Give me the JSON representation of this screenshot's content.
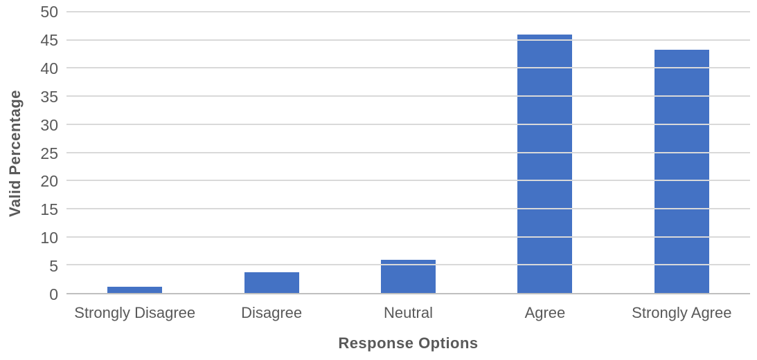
{
  "chart_data": {
    "type": "bar",
    "categories": [
      "Strongly Disagree",
      "Disagree",
      "Neutral",
      "Agree",
      "Strongly Agree"
    ],
    "values": [
      1.1,
      3.7,
      5.9,
      46.0,
      43.3
    ],
    "title": "",
    "xlabel": "Response Options",
    "ylabel": "Valid Percentage",
    "ylim": [
      0,
      50
    ],
    "yticks": [
      0,
      5,
      10,
      15,
      20,
      25,
      30,
      35,
      40,
      45,
      50
    ],
    "grid": true,
    "legend_position": "none",
    "colors": {
      "bar": "#4472C4",
      "gridline": "#D9D9D9",
      "axis_line": "#BFBFBF",
      "tick_label": "#595959",
      "axis_title": "#595959",
      "background": "#FFFFFF"
    }
  }
}
